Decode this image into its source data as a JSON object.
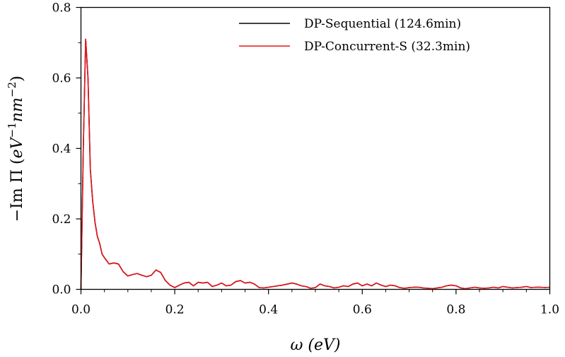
{
  "chart_data": {
    "type": "line",
    "title": "",
    "xlabel": "ω (eV)",
    "ylabel": "−Im Π (eV⁻¹nm⁻²)",
    "ylabel_parts": {
      "prefix": "−Im Π (",
      "v1": "eV",
      "e1": "−1",
      "v2": "nm",
      "e2": "−2",
      "suffix": ")"
    },
    "xlim": [
      0,
      1.0
    ],
    "ylim": [
      0,
      0.8
    ],
    "xticks": [
      0.0,
      0.2,
      0.4,
      0.6,
      0.8,
      1.0
    ],
    "xtick_labels": [
      "0.0",
      "0.2",
      "0.4",
      "0.6",
      "0.8",
      "1.0"
    ],
    "xminor_step": 0.05,
    "yticks": [
      0.0,
      0.2,
      0.4,
      0.6,
      0.8
    ],
    "ytick_labels": [
      "0.0",
      "0.2",
      "0.4",
      "0.6",
      "0.8"
    ],
    "yminor_step": 0.1,
    "grid": false,
    "legend_position": "top-right",
    "series": [
      {
        "name": "DP-Sequential (124.6min)",
        "color": "#000000",
        "x": [
          0.0,
          0.005,
          0.01,
          0.015,
          0.02,
          0.025,
          0.03,
          0.035,
          0.04,
          0.045,
          0.05,
          0.06,
          0.07,
          0.08,
          0.09,
          0.1,
          0.11,
          0.12,
          0.13,
          0.14,
          0.15,
          0.16,
          0.17,
          0.18,
          0.19,
          0.2,
          0.21,
          0.22,
          0.23,
          0.24,
          0.25,
          0.26,
          0.27,
          0.28,
          0.29,
          0.3,
          0.31,
          0.32,
          0.33,
          0.34,
          0.35,
          0.36,
          0.37,
          0.38,
          0.39,
          0.4,
          0.41,
          0.42,
          0.43,
          0.44,
          0.45,
          0.46,
          0.47,
          0.48,
          0.49,
          0.5,
          0.51,
          0.52,
          0.53,
          0.54,
          0.55,
          0.56,
          0.57,
          0.58,
          0.59,
          0.6,
          0.61,
          0.62,
          0.63,
          0.64,
          0.65,
          0.66,
          0.67,
          0.68,
          0.69,
          0.7,
          0.71,
          0.72,
          0.73,
          0.74,
          0.75,
          0.76,
          0.77,
          0.78,
          0.79,
          0.8,
          0.81,
          0.82,
          0.83,
          0.84,
          0.85,
          0.86,
          0.87,
          0.88,
          0.89,
          0.9,
          0.91,
          0.92,
          0.93,
          0.94,
          0.95,
          0.96,
          0.97,
          0.98,
          0.99,
          1.0
        ],
        "y": [
          0.0,
          0.4,
          0.71,
          0.6,
          0.34,
          0.25,
          0.19,
          0.15,
          0.13,
          0.1,
          0.09,
          0.072,
          0.075,
          0.072,
          0.05,
          0.038,
          0.042,
          0.045,
          0.04,
          0.036,
          0.04,
          0.055,
          0.048,
          0.025,
          0.012,
          0.005,
          0.012,
          0.018,
          0.02,
          0.01,
          0.02,
          0.018,
          0.02,
          0.008,
          0.012,
          0.018,
          0.01,
          0.012,
          0.022,
          0.025,
          0.018,
          0.02,
          0.015,
          0.005,
          0.004,
          0.006,
          0.008,
          0.01,
          0.012,
          0.015,
          0.018,
          0.015,
          0.01,
          0.008,
          0.003,
          0.005,
          0.015,
          0.01,
          0.008,
          0.004,
          0.006,
          0.01,
          0.008,
          0.015,
          0.018,
          0.01,
          0.015,
          0.01,
          0.018,
          0.012,
          0.008,
          0.012,
          0.01,
          0.005,
          0.003,
          0.005,
          0.006,
          0.006,
          0.004,
          0.003,
          0.002,
          0.004,
          0.006,
          0.01,
          0.012,
          0.01,
          0.004,
          0.002,
          0.004,
          0.006,
          0.004,
          0.003,
          0.004,
          0.006,
          0.004,
          0.008,
          0.006,
          0.004,
          0.005,
          0.006,
          0.008,
          0.005,
          0.006,
          0.006,
          0.005,
          0.006
        ]
      },
      {
        "name": "DP-Concurrent-S (32.3min)",
        "color": "#e8161c",
        "x": [
          0.0,
          0.005,
          0.01,
          0.015,
          0.02,
          0.025,
          0.03,
          0.035,
          0.04,
          0.045,
          0.05,
          0.06,
          0.07,
          0.08,
          0.09,
          0.1,
          0.11,
          0.12,
          0.13,
          0.14,
          0.15,
          0.16,
          0.17,
          0.18,
          0.19,
          0.2,
          0.21,
          0.22,
          0.23,
          0.24,
          0.25,
          0.26,
          0.27,
          0.28,
          0.29,
          0.3,
          0.31,
          0.32,
          0.33,
          0.34,
          0.35,
          0.36,
          0.37,
          0.38,
          0.39,
          0.4,
          0.41,
          0.42,
          0.43,
          0.44,
          0.45,
          0.46,
          0.47,
          0.48,
          0.49,
          0.5,
          0.51,
          0.52,
          0.53,
          0.54,
          0.55,
          0.56,
          0.57,
          0.58,
          0.59,
          0.6,
          0.61,
          0.62,
          0.63,
          0.64,
          0.65,
          0.66,
          0.67,
          0.68,
          0.69,
          0.7,
          0.71,
          0.72,
          0.73,
          0.74,
          0.75,
          0.76,
          0.77,
          0.78,
          0.79,
          0.8,
          0.81,
          0.82,
          0.83,
          0.84,
          0.85,
          0.86,
          0.87,
          0.88,
          0.89,
          0.9,
          0.91,
          0.92,
          0.93,
          0.94,
          0.95,
          0.96,
          0.97,
          0.98,
          0.99,
          1.0
        ],
        "y": [
          0.0,
          0.4,
          0.71,
          0.6,
          0.34,
          0.25,
          0.19,
          0.15,
          0.13,
          0.1,
          0.09,
          0.072,
          0.075,
          0.072,
          0.05,
          0.038,
          0.042,
          0.045,
          0.04,
          0.036,
          0.04,
          0.055,
          0.048,
          0.025,
          0.012,
          0.005,
          0.012,
          0.018,
          0.02,
          0.01,
          0.02,
          0.018,
          0.02,
          0.008,
          0.012,
          0.018,
          0.01,
          0.012,
          0.022,
          0.025,
          0.018,
          0.02,
          0.015,
          0.005,
          0.004,
          0.006,
          0.008,
          0.01,
          0.012,
          0.015,
          0.018,
          0.015,
          0.01,
          0.008,
          0.003,
          0.005,
          0.015,
          0.01,
          0.008,
          0.004,
          0.006,
          0.01,
          0.008,
          0.015,
          0.018,
          0.01,
          0.015,
          0.01,
          0.018,
          0.012,
          0.008,
          0.012,
          0.01,
          0.005,
          0.003,
          0.005,
          0.006,
          0.006,
          0.004,
          0.003,
          0.002,
          0.004,
          0.006,
          0.01,
          0.012,
          0.01,
          0.004,
          0.002,
          0.004,
          0.006,
          0.004,
          0.003,
          0.004,
          0.006,
          0.004,
          0.008,
          0.006,
          0.004,
          0.005,
          0.006,
          0.008,
          0.005,
          0.006,
          0.006,
          0.005,
          0.006
        ]
      }
    ]
  }
}
